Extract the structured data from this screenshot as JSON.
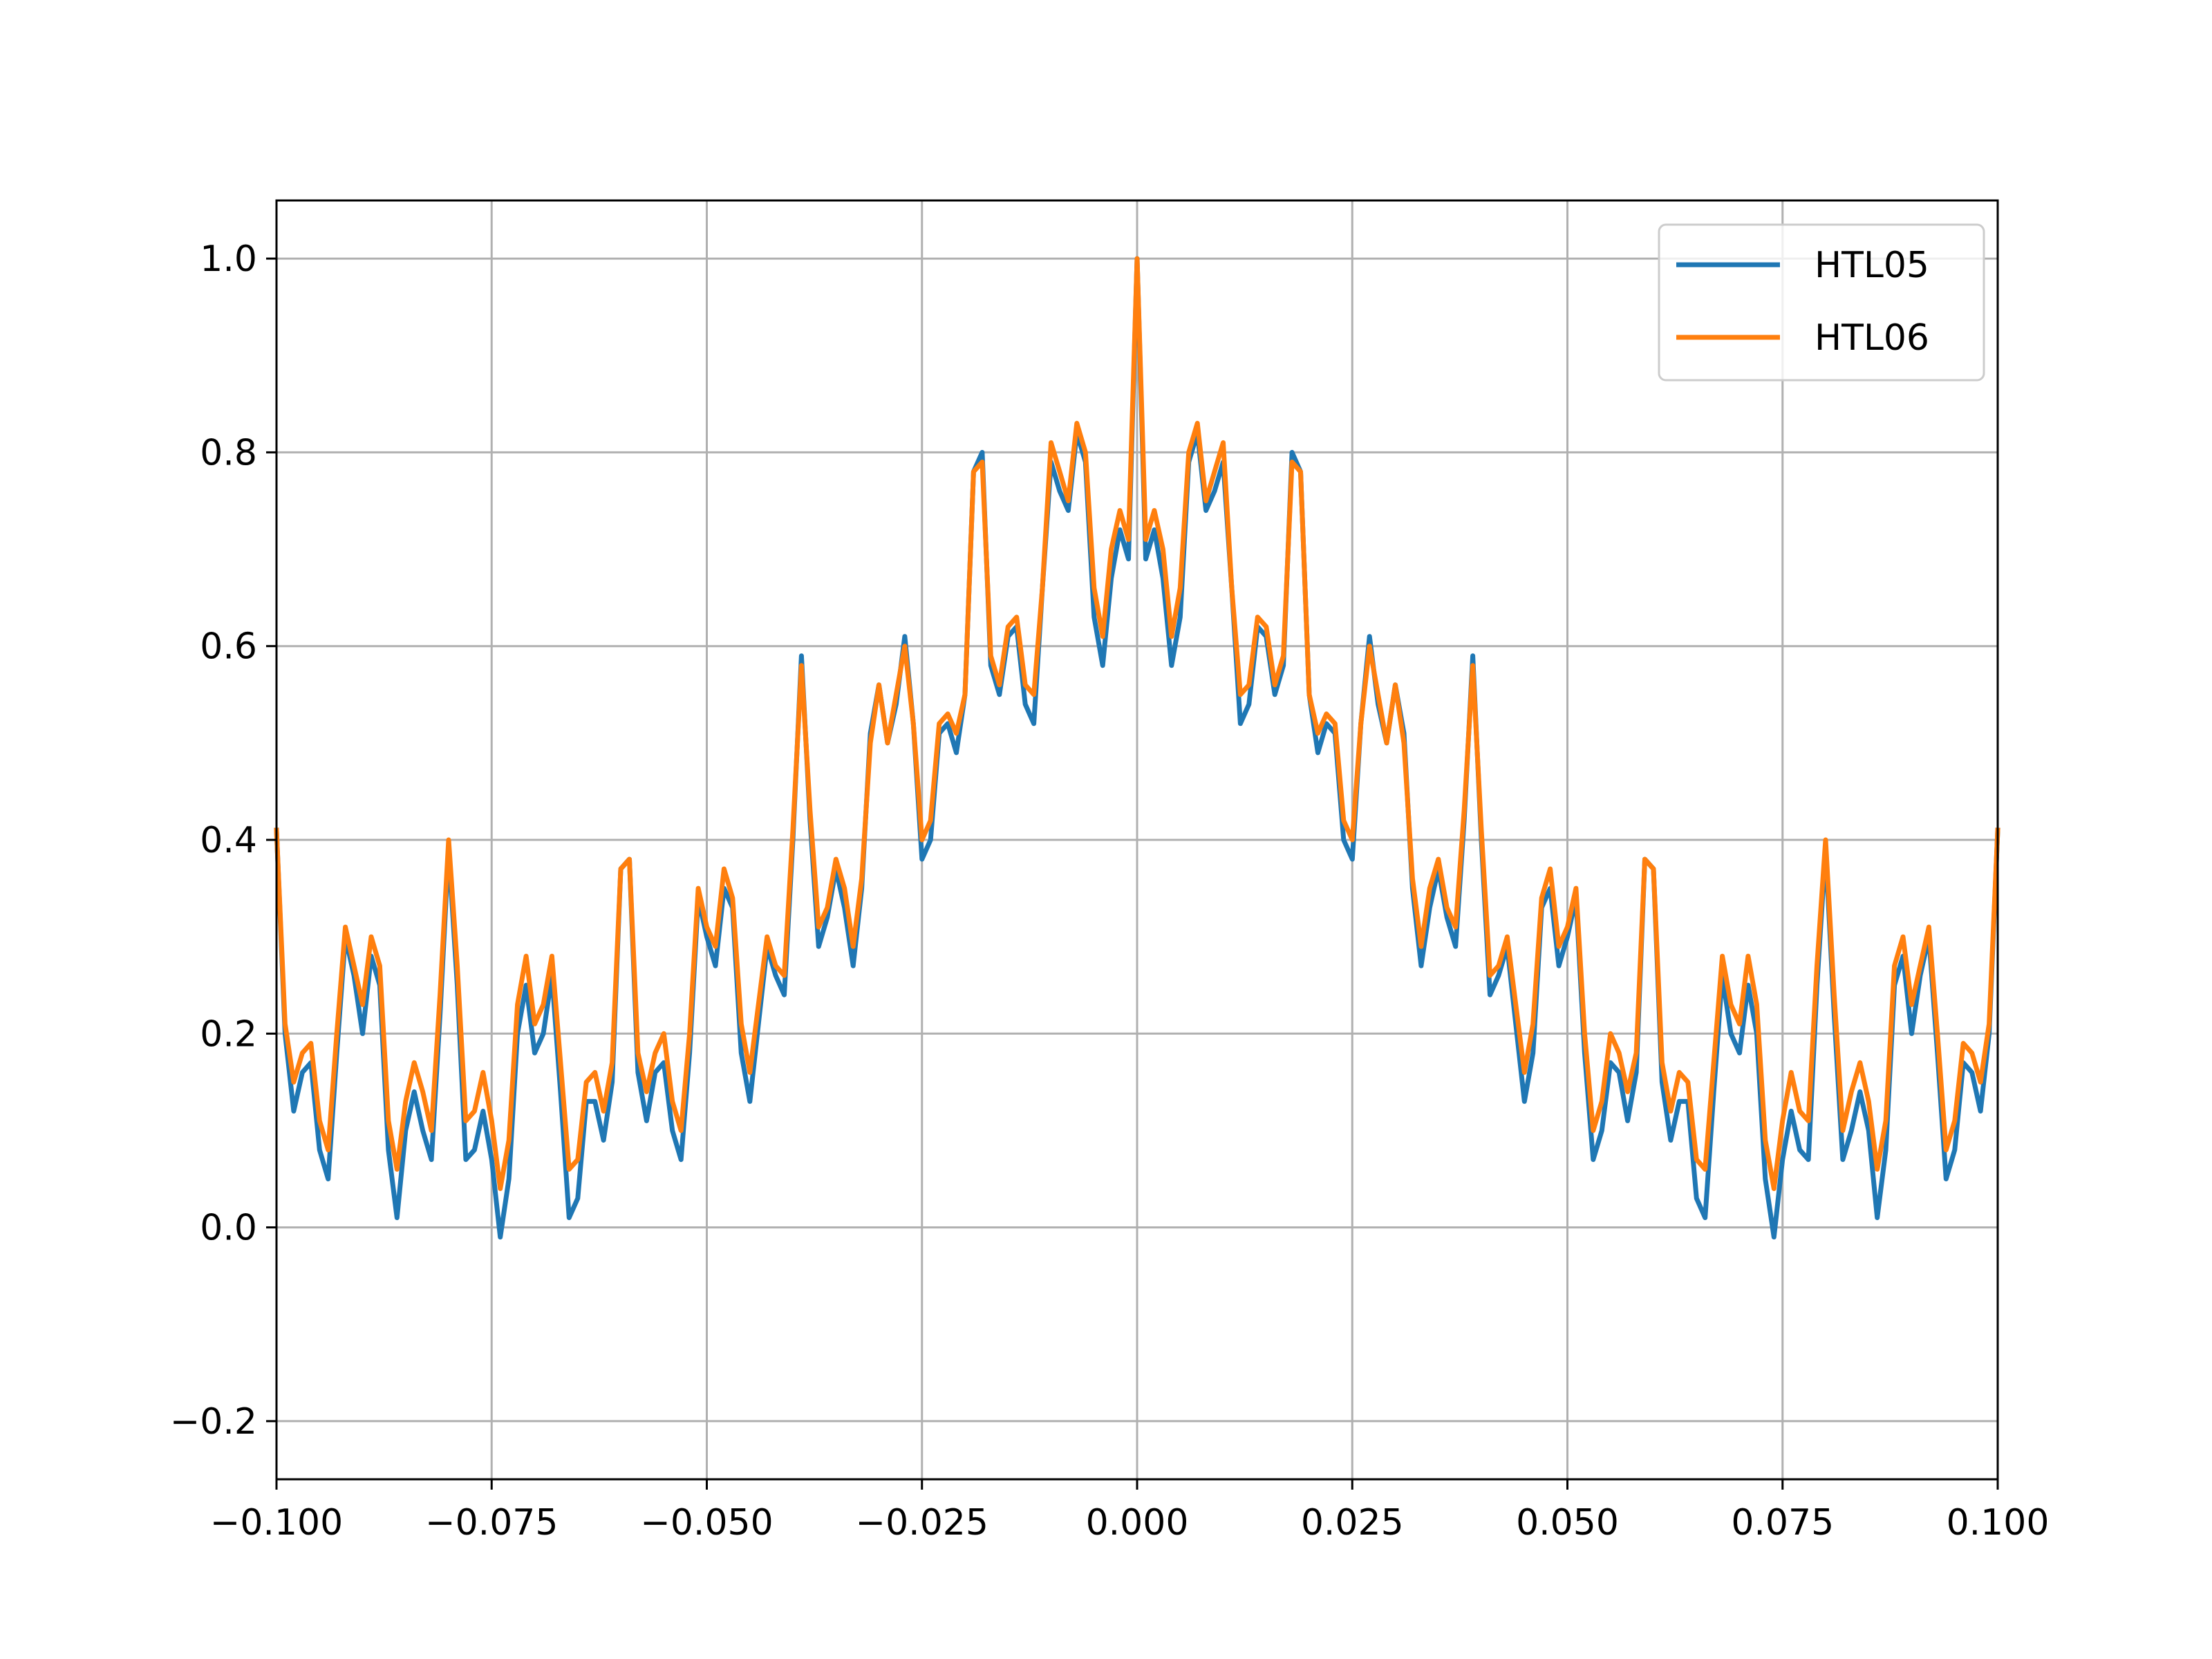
{
  "chart_data": {
    "type": "line",
    "title": "",
    "xlabel": "",
    "ylabel": "",
    "xlim": [
      -0.1,
      0.1
    ],
    "ylim": [
      -0.26,
      1.06
    ],
    "grid": true,
    "legend_position": "top-right",
    "x_ticks": [
      -0.1,
      -0.075,
      -0.05,
      -0.025,
      0.0,
      0.025,
      0.05,
      0.075,
      0.1
    ],
    "x_tick_labels": [
      "−0.100",
      "−0.075",
      "−0.050",
      "−0.025",
      "0.000",
      "0.025",
      "0.050",
      "0.075",
      "0.100"
    ],
    "y_ticks": [
      -0.2,
      0.0,
      0.2,
      0.4,
      0.6,
      0.8,
      1.0
    ],
    "y_tick_labels": [
      "−0.2",
      "0.0",
      "0.2",
      "0.4",
      "0.6",
      "0.8",
      "1.0"
    ],
    "x": [
      -0.1,
      -0.099,
      -0.098,
      -0.097,
      -0.096,
      -0.095,
      -0.094,
      -0.093,
      -0.092,
      -0.091,
      -0.09,
      -0.089,
      -0.088,
      -0.087,
      -0.086,
      -0.085,
      -0.084,
      -0.083,
      -0.082,
      -0.081,
      -0.08,
      -0.079,
      -0.078,
      -0.077,
      -0.076,
      -0.075,
      -0.074,
      -0.073,
      -0.072,
      -0.071,
      -0.07,
      -0.069,
      -0.068,
      -0.067,
      -0.066,
      -0.065,
      -0.064,
      -0.063,
      -0.062,
      -0.061,
      -0.06,
      -0.059,
      -0.058,
      -0.057,
      -0.056,
      -0.055,
      -0.054,
      -0.053,
      -0.052,
      -0.051,
      -0.05,
      -0.049,
      -0.048,
      -0.047,
      -0.046,
      -0.045,
      -0.044,
      -0.043,
      -0.042,
      -0.041,
      -0.04,
      -0.039,
      -0.038,
      -0.037,
      -0.036,
      -0.035,
      -0.034,
      -0.033,
      -0.032,
      -0.031,
      -0.03,
      -0.029,
      -0.028,
      -0.027,
      -0.026,
      -0.025,
      -0.024,
      -0.023,
      -0.022,
      -0.021,
      -0.02,
      -0.019,
      -0.018,
      -0.017,
      -0.016,
      -0.015,
      -0.014,
      -0.013,
      -0.012,
      -0.011,
      -0.01,
      -0.009,
      -0.008,
      -0.007,
      -0.006,
      -0.005,
      -0.004,
      -0.003,
      -0.002,
      -0.001,
      0.0,
      0.001,
      0.002,
      0.003,
      0.004,
      0.005,
      0.006,
      0.007,
      0.008,
      0.009,
      0.01,
      0.011,
      0.012,
      0.013,
      0.014,
      0.015,
      0.016,
      0.017,
      0.018,
      0.019,
      0.02,
      0.021,
      0.022,
      0.023,
      0.024,
      0.025,
      0.026,
      0.027,
      0.028,
      0.029,
      0.03,
      0.031,
      0.032,
      0.033,
      0.034,
      0.035,
      0.036,
      0.037,
      0.038,
      0.039,
      0.04,
      0.041,
      0.042,
      0.043,
      0.044,
      0.045,
      0.046,
      0.047,
      0.048,
      0.049,
      0.05,
      0.051,
      0.052,
      0.053,
      0.054,
      0.055,
      0.056,
      0.057,
      0.058,
      0.059,
      0.06,
      0.061,
      0.062,
      0.063,
      0.064,
      0.065,
      0.066,
      0.067,
      0.068,
      0.069,
      0.07,
      0.071,
      0.072,
      0.073,
      0.074,
      0.075,
      0.076,
      0.077,
      0.078,
      0.079,
      0.08,
      0.081,
      0.082,
      0.083,
      0.084,
      0.085,
      0.086,
      0.087,
      0.088,
      0.089,
      0.09,
      0.091,
      0.092,
      0.093,
      0.094,
      0.095,
      0.096,
      0.097,
      0.098,
      0.099,
      0.1
    ],
    "series": [
      {
        "name": "HTL05",
        "color": "#1f77b4",
        "values": [
          0.41,
          0.2,
          0.12,
          0.16,
          0.17,
          0.08,
          0.05,
          0.18,
          0.3,
          0.26,
          0.2,
          0.28,
          0.25,
          0.08,
          0.01,
          0.1,
          0.14,
          0.1,
          0.07,
          0.22,
          0.39,
          0.25,
          0.07,
          0.08,
          0.12,
          0.07,
          -0.01,
          0.05,
          0.2,
          0.25,
          0.18,
          0.2,
          0.26,
          0.14,
          0.01,
          0.03,
          0.13,
          0.13,
          0.09,
          0.15,
          0.37,
          0.38,
          0.16,
          0.11,
          0.16,
          0.17,
          0.1,
          0.07,
          0.18,
          0.34,
          0.3,
          0.27,
          0.35,
          0.33,
          0.18,
          0.13,
          0.21,
          0.29,
          0.26,
          0.24,
          0.4,
          0.59,
          0.42,
          0.29,
          0.32,
          0.37,
          0.33,
          0.27,
          0.35,
          0.51,
          0.56,
          0.5,
          0.54,
          0.61,
          0.52,
          0.38,
          0.4,
          0.51,
          0.52,
          0.49,
          0.55,
          0.78,
          0.8,
          0.58,
          0.55,
          0.61,
          0.62,
          0.54,
          0.52,
          0.66,
          0.79,
          0.76,
          0.74,
          0.82,
          0.79,
          0.63,
          0.58,
          0.67,
          0.72,
          0.69,
          1.0,
          0.69,
          0.72,
          0.67,
          0.58,
          0.63,
          0.79,
          0.82,
          0.74,
          0.76,
          0.79,
          0.66,
          0.52,
          0.54,
          0.62,
          0.61,
          0.55,
          0.58,
          0.8,
          0.78,
          0.55,
          0.49,
          0.52,
          0.51,
          0.4,
          0.38,
          0.52,
          0.61,
          0.54,
          0.5,
          0.56,
          0.51,
          0.35,
          0.27,
          0.33,
          0.37,
          0.32,
          0.29,
          0.42,
          0.59,
          0.4,
          0.24,
          0.26,
          0.29,
          0.21,
          0.13,
          0.18,
          0.33,
          0.35,
          0.27,
          0.3,
          0.34,
          0.18,
          0.07,
          0.1,
          0.17,
          0.16,
          0.11,
          0.16,
          0.38,
          0.37,
          0.15,
          0.09,
          0.13,
          0.13,
          0.03,
          0.01,
          0.14,
          0.26,
          0.2,
          0.18,
          0.25,
          0.2,
          0.05,
          -0.01,
          0.07,
          0.12,
          0.08,
          0.07,
          0.25,
          0.39,
          0.22,
          0.07,
          0.1,
          0.14,
          0.1,
          0.01,
          0.08,
          0.25,
          0.28,
          0.2,
          0.26,
          0.3,
          0.18,
          0.05,
          0.08,
          0.17,
          0.16,
          0.12,
          0.2,
          0.41
        ]
      },
      {
        "name": "HTL06",
        "color": "#ff7f0e",
        "values": [
          0.41,
          0.21,
          0.15,
          0.18,
          0.19,
          0.11,
          0.08,
          0.2,
          0.31,
          0.27,
          0.23,
          0.3,
          0.27,
          0.11,
          0.06,
          0.13,
          0.17,
          0.14,
          0.1,
          0.24,
          0.4,
          0.27,
          0.11,
          0.12,
          0.16,
          0.11,
          0.04,
          0.09,
          0.23,
          0.28,
          0.21,
          0.23,
          0.28,
          0.17,
          0.06,
          0.07,
          0.15,
          0.16,
          0.12,
          0.17,
          0.37,
          0.38,
          0.18,
          0.14,
          0.18,
          0.2,
          0.13,
          0.1,
          0.2,
          0.35,
          0.31,
          0.29,
          0.37,
          0.34,
          0.21,
          0.16,
          0.23,
          0.3,
          0.27,
          0.26,
          0.41,
          0.58,
          0.43,
          0.31,
          0.33,
          0.38,
          0.35,
          0.29,
          0.36,
          0.5,
          0.56,
          0.5,
          0.55,
          0.6,
          0.52,
          0.4,
          0.42,
          0.52,
          0.53,
          0.51,
          0.55,
          0.78,
          0.79,
          0.59,
          0.56,
          0.62,
          0.63,
          0.56,
          0.55,
          0.66,
          0.81,
          0.78,
          0.75,
          0.83,
          0.8,
          0.66,
          0.61,
          0.7,
          0.74,
          0.71,
          1.0,
          0.71,
          0.74,
          0.7,
          0.61,
          0.66,
          0.8,
          0.83,
          0.75,
          0.78,
          0.81,
          0.66,
          0.55,
          0.56,
          0.63,
          0.62,
          0.56,
          0.59,
          0.79,
          0.78,
          0.55,
          0.51,
          0.53,
          0.52,
          0.42,
          0.4,
          0.52,
          0.6,
          0.55,
          0.5,
          0.56,
          0.5,
          0.36,
          0.29,
          0.35,
          0.38,
          0.33,
          0.31,
          0.43,
          0.58,
          0.41,
          0.26,
          0.27,
          0.3,
          0.23,
          0.16,
          0.21,
          0.34,
          0.37,
          0.29,
          0.31,
          0.35,
          0.2,
          0.1,
          0.13,
          0.2,
          0.18,
          0.14,
          0.18,
          0.38,
          0.37,
          0.17,
          0.12,
          0.16,
          0.15,
          0.07,
          0.06,
          0.17,
          0.28,
          0.23,
          0.21,
          0.28,
          0.23,
          0.09,
          0.04,
          0.11,
          0.16,
          0.12,
          0.11,
          0.27,
          0.4,
          0.24,
          0.1,
          0.14,
          0.17,
          0.13,
          0.06,
          0.11,
          0.27,
          0.3,
          0.23,
          0.27,
          0.31,
          0.2,
          0.08,
          0.11,
          0.19,
          0.18,
          0.15,
          0.21,
          0.41
        ]
      }
    ]
  }
}
